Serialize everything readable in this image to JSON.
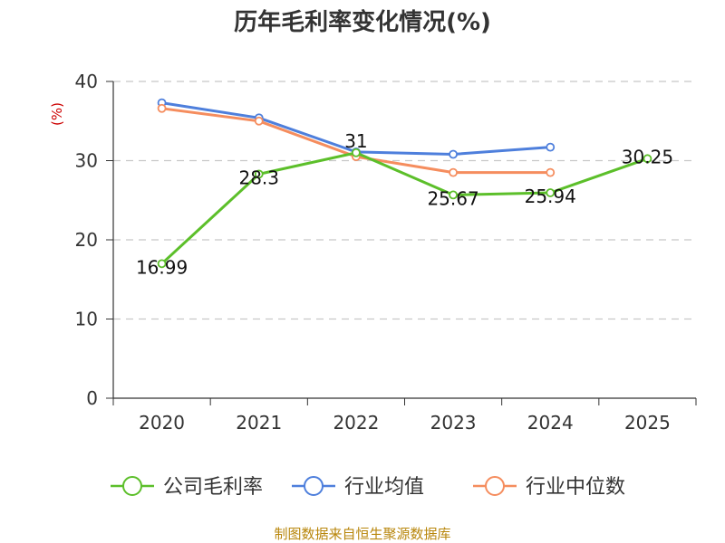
{
  "chart_data": {
    "type": "line",
    "title": "历年毛利率变化情况(%)",
    "ylabel": "(%)",
    "xlabel": "",
    "categories": [
      "2020",
      "2021",
      "2022",
      "2023",
      "2024",
      "2025"
    ],
    "ylim": [
      0,
      40
    ],
    "yticks": [
      0,
      10,
      20,
      30,
      40
    ],
    "grid": true,
    "legend_position": "bottom",
    "series": [
      {
        "name": "公司毛利率",
        "color": "#5cbf2a",
        "values": [
          16.99,
          28.3,
          31,
          25.67,
          25.94,
          30.25
        ],
        "labels": [
          "16.99",
          "28.3",
          "31",
          "25.67",
          "25.94",
          "30.25"
        ]
      },
      {
        "name": "行业均值",
        "color": "#4e7fdc",
        "values": [
          37.3,
          35.4,
          31.1,
          30.8,
          31.7,
          null
        ],
        "labels": []
      },
      {
        "name": "行业中位数",
        "color": "#f58d5e",
        "values": [
          36.6,
          35.0,
          30.5,
          28.5,
          28.5,
          null
        ],
        "labels": []
      }
    ]
  },
  "source": "制图数据来自恒生聚源数据库"
}
